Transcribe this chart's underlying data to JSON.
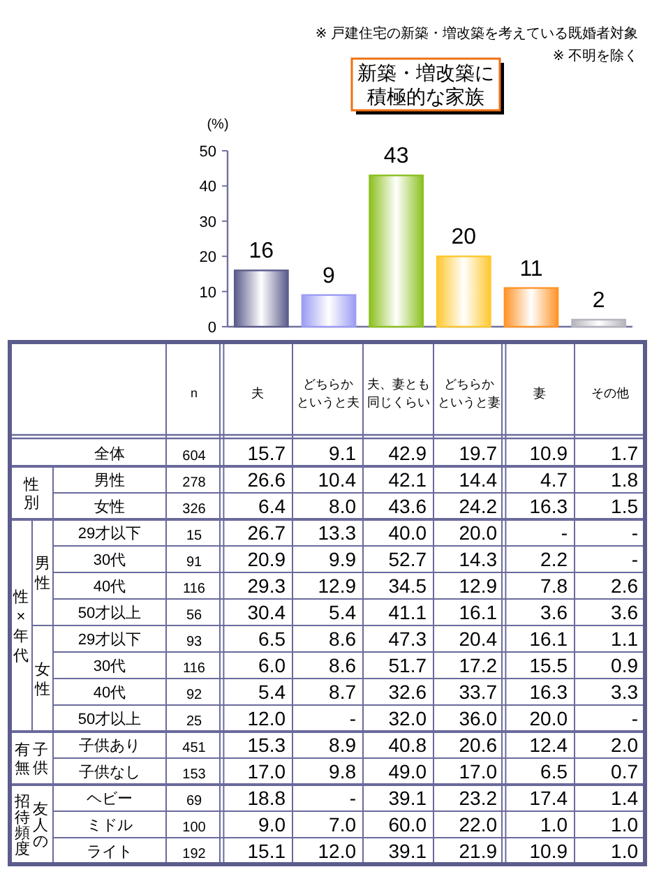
{
  "chart_data": [
    {
      "type": "bar",
      "title": "新築・増改築に積極的な家族",
      "ylabel": "(%)",
      "annotations": [
        "※ 戸建住宅の新築・増改築を考えている既婚者対象",
        "※ 不明を除く"
      ],
      "categories": [
        null,
        null,
        null,
        null,
        null,
        null
      ],
      "values": [
        16,
        9,
        43,
        20,
        11,
        2
      ],
      "colors": [
        "#5c5c8c",
        "#9c9cf4",
        "#8cc020",
        "#ffc830",
        "#ff9428",
        "#b4b4bc"
      ],
      "ylim": [
        0,
        50
      ],
      "yticks": [
        0,
        10,
        20,
        30,
        40,
        50
      ],
      "data_labels": true
    },
    {
      "type": "heatmap",
      "categories": [
        "n",
        "夫",
        "どちらかというと夫",
        "夫、妻とも同じくらい",
        "どちらかというと妻",
        "妻",
        "その他"
      ],
      "y_categories": [
        "全体",
        "男性",
        "女性",
        "29才以下",
        "30代",
        "40代",
        "50才以上",
        "29才以下",
        "30代",
        "40代",
        "50才以上",
        "子供あり",
        "子供なし",
        "ヘビー",
        "ミドル",
        "ライト"
      ],
      "annotations": [
        "性別",
        "性×年代",
        "男性",
        "女性",
        "子供有無",
        "友人の招待頻度"
      ],
      "cells": [
        [
          604,
          15.7,
          9.1,
          42.9,
          19.7,
          10.9,
          1.7
        ],
        [
          278,
          26.6,
          10.4,
          42.1,
          14.4,
          4.7,
          1.8
        ],
        [
          326,
          6.4,
          8.0,
          43.6,
          24.2,
          16.3,
          1.5
        ],
        [
          15,
          26.7,
          13.3,
          40.0,
          20.0,
          null,
          null
        ],
        [
          91,
          20.9,
          9.9,
          52.7,
          14.3,
          2.2,
          null
        ],
        [
          116,
          29.3,
          12.9,
          34.5,
          12.9,
          7.8,
          2.6
        ],
        [
          56,
          30.4,
          5.4,
          41.1,
          16.1,
          3.6,
          3.6
        ],
        [
          93,
          6.5,
          8.6,
          47.3,
          20.4,
          16.1,
          1.1
        ],
        [
          116,
          6.0,
          8.6,
          51.7,
          17.2,
          15.5,
          0.9
        ],
        [
          92,
          5.4,
          8.7,
          32.6,
          33.7,
          16.3,
          3.3
        ],
        [
          25,
          12.0,
          null,
          32.0,
          36.0,
          20.0,
          null
        ],
        [
          451,
          15.3,
          8.9,
          40.8,
          20.6,
          12.4,
          2.0
        ],
        [
          153,
          17.0,
          9.8,
          49.0,
          17.0,
          6.5,
          0.7
        ],
        [
          69,
          18.8,
          null,
          39.1,
          23.2,
          17.4,
          1.4
        ],
        [
          100,
          9.0,
          7.0,
          60.0,
          22.0,
          1.0,
          1.0
        ],
        [
          192,
          15.1,
          12.0,
          39.1,
          21.9,
          10.9,
          1.0
        ]
      ],
      "cell_labels": [
        [
          "604",
          "15.7",
          "9.1",
          "42.9",
          "19.7",
          "10.9",
          "1.7"
        ],
        [
          "278",
          "26.6",
          "10.4",
          "42.1",
          "14.4",
          "4.7",
          "1.8"
        ],
        [
          "326",
          "6.4",
          "8.0",
          "43.6",
          "24.2",
          "16.3",
          "1.5"
        ],
        [
          "15",
          "26.7",
          "13.3",
          "40.0",
          "20.0",
          "-",
          "-"
        ],
        [
          "91",
          "20.9",
          "9.9",
          "52.7",
          "14.3",
          "2.2",
          "-"
        ],
        [
          "116",
          "29.3",
          "12.9",
          "34.5",
          "12.9",
          "7.8",
          "2.6"
        ],
        [
          "56",
          "30.4",
          "5.4",
          "41.1",
          "16.1",
          "3.6",
          "3.6"
        ],
        [
          "93",
          "6.5",
          "8.6",
          "47.3",
          "20.4",
          "16.1",
          "1.1"
        ],
        [
          "116",
          "6.0",
          "8.6",
          "51.7",
          "17.2",
          "15.5",
          "0.9"
        ],
        [
          "92",
          "5.4",
          "8.7",
          "32.6",
          "33.7",
          "16.3",
          "3.3"
        ],
        [
          "25",
          "12.0",
          "-",
          "32.0",
          "36.0",
          "20.0",
          "-"
        ],
        [
          "451",
          "15.3",
          "8.9",
          "40.8",
          "20.6",
          "12.4",
          "2.0"
        ],
        [
          "153",
          "17.0",
          "9.8",
          "49.0",
          "17.0",
          "6.5",
          "0.7"
        ],
        [
          "69",
          "18.8",
          "-",
          "39.1",
          "23.2",
          "17.4",
          "1.4"
        ],
        [
          "100",
          "9.0",
          "7.0",
          "60.0",
          "22.0",
          "1.0",
          "1.0"
        ],
        [
          "192",
          "15.1",
          "12.0",
          "39.1",
          "21.9",
          "10.9",
          "1.0"
        ]
      ],
      "data_labels": true
    }
  ]
}
